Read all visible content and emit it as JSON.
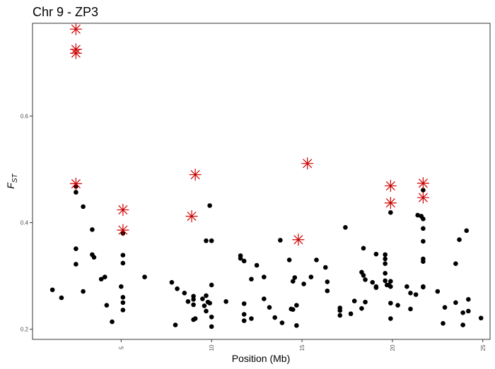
{
  "chart_data": {
    "type": "scatter",
    "title": "Chr 9 - ZP3",
    "xlabel": "Position (Mb)",
    "ylabel_main": "F",
    "ylabel_sub": "ST",
    "xlim": [
      0.1,
      25.4
    ],
    "ylim": [
      0.181,
      0.774
    ],
    "xticks": [
      5,
      10,
      15,
      20,
      25
    ],
    "yticks": [
      0.2,
      0.4,
      0.6
    ],
    "xtick_labels": [
      "5",
      "10",
      "15",
      "20",
      "25"
    ],
    "ytick_labels": [
      "0.2",
      "0.4",
      "0.6"
    ],
    "grid": false,
    "series": [
      {
        "marker": "dot",
        "color": "#000000",
        "points": [
          [
            1.2,
            0.274
          ],
          [
            1.7,
            0.259
          ],
          [
            2.5,
            0.468
          ],
          [
            2.5,
            0.457
          ],
          [
            2.5,
            0.351
          ],
          [
            2.5,
            0.322
          ],
          [
            2.9,
            0.43
          ],
          [
            2.9,
            0.271
          ],
          [
            3.4,
            0.387
          ],
          [
            3.4,
            0.34
          ],
          [
            3.5,
            0.335
          ],
          [
            3.9,
            0.294
          ],
          [
            4.1,
            0.298
          ],
          [
            4.2,
            0.245
          ],
          [
            4.5,
            0.214
          ],
          [
            5.0,
            0.28
          ],
          [
            5.1,
            0.26
          ],
          [
            5.1,
            0.25
          ],
          [
            5.1,
            0.236
          ],
          [
            5.1,
            0.339
          ],
          [
            5.1,
            0.324
          ],
          [
            5.1,
            0.38
          ],
          [
            6.3,
            0.298
          ],
          [
            7.8,
            0.288
          ],
          [
            8.0,
            0.208
          ],
          [
            8.1,
            0.276
          ],
          [
            8.5,
            0.268
          ],
          [
            8.7,
            0.252
          ],
          [
            9.0,
            0.262
          ],
          [
            9.0,
            0.256
          ],
          [
            9.0,
            0.246
          ],
          [
            9.0,
            0.218
          ],
          [
            9.1,
            0.22
          ],
          [
            9.5,
            0.257
          ],
          [
            9.6,
            0.244
          ],
          [
            9.7,
            0.263
          ],
          [
            9.7,
            0.234
          ],
          [
            9.7,
            0.366
          ],
          [
            9.8,
            0.251
          ],
          [
            9.9,
            0.432
          ],
          [
            9.9,
            0.249
          ],
          [
            10.0,
            0.366
          ],
          [
            10.0,
            0.283
          ],
          [
            10.0,
            0.223
          ],
          [
            10.0,
            0.205
          ],
          [
            10.8,
            0.252
          ],
          [
            11.6,
            0.338
          ],
          [
            11.6,
            0.333
          ],
          [
            11.8,
            0.248
          ],
          [
            11.8,
            0.328
          ],
          [
            11.8,
            0.228
          ],
          [
            11.8,
            0.216
          ],
          [
            12.2,
            0.294
          ],
          [
            12.2,
            0.22
          ],
          [
            12.5,
            0.32
          ],
          [
            12.9,
            0.298
          ],
          [
            12.9,
            0.257
          ],
          [
            13.2,
            0.241
          ],
          [
            13.5,
            0.222
          ],
          [
            13.8,
            0.367
          ],
          [
            13.9,
            0.212
          ],
          [
            14.3,
            0.33
          ],
          [
            14.4,
            0.238
          ],
          [
            14.5,
            0.29
          ],
          [
            14.5,
            0.237
          ],
          [
            14.6,
            0.297
          ],
          [
            14.7,
            0.207
          ],
          [
            14.7,
            0.245
          ],
          [
            15.1,
            0.285
          ],
          [
            15.5,
            0.298
          ],
          [
            15.8,
            0.33
          ],
          [
            16.3,
            0.316
          ],
          [
            16.4,
            0.289
          ],
          [
            16.4,
            0.272
          ],
          [
            17.1,
            0.24
          ],
          [
            17.1,
            0.235
          ],
          [
            17.1,
            0.226
          ],
          [
            17.4,
            0.391
          ],
          [
            17.7,
            0.229
          ],
          [
            17.9,
            0.253
          ],
          [
            18.3,
            0.307
          ],
          [
            18.3,
            0.239
          ],
          [
            18.4,
            0.352
          ],
          [
            18.4,
            0.301
          ],
          [
            18.5,
            0.293
          ],
          [
            18.5,
            0.251
          ],
          [
            18.9,
            0.288
          ],
          [
            19.1,
            0.341
          ],
          [
            19.1,
            0.28
          ],
          [
            19.1,
            0.278
          ],
          [
            19.6,
            0.34
          ],
          [
            19.6,
            0.332
          ],
          [
            19.6,
            0.323
          ],
          [
            19.6,
            0.305
          ],
          [
            19.6,
            0.291
          ],
          [
            19.7,
            0.283
          ],
          [
            19.8,
            0.283
          ],
          [
            19.9,
            0.419
          ],
          [
            19.9,
            0.29
          ],
          [
            19.9,
            0.28
          ],
          [
            19.9,
            0.249
          ],
          [
            19.9,
            0.22
          ],
          [
            20.3,
            0.245
          ],
          [
            20.8,
            0.28
          ],
          [
            21.0,
            0.268
          ],
          [
            21.0,
            0.238
          ],
          [
            21.3,
            0.265
          ],
          [
            21.4,
            0.414
          ],
          [
            21.6,
            0.412
          ],
          [
            21.7,
            0.461
          ],
          [
            21.7,
            0.407
          ],
          [
            21.7,
            0.389
          ],
          [
            21.7,
            0.365
          ],
          [
            21.7,
            0.332
          ],
          [
            21.7,
            0.327
          ],
          [
            21.7,
            0.28
          ],
          [
            21.7,
            0.279
          ],
          [
            22.5,
            0.271
          ],
          [
            22.8,
            0.211
          ],
          [
            22.9,
            0.241
          ],
          [
            23.5,
            0.323
          ],
          [
            23.5,
            0.25
          ],
          [
            23.7,
            0.368
          ],
          [
            23.9,
            0.231
          ],
          [
            23.9,
            0.208
          ],
          [
            24.1,
            0.385
          ],
          [
            24.2,
            0.256
          ],
          [
            24.2,
            0.234
          ],
          [
            24.9,
            0.221
          ]
        ]
      },
      {
        "marker": "asterisk",
        "color": "#cc0000",
        "points": [
          [
            2.5,
            0.763
          ],
          [
            2.5,
            0.725
          ],
          [
            2.5,
            0.718
          ],
          [
            2.5,
            0.473
          ],
          [
            5.1,
            0.424
          ],
          [
            5.1,
            0.386
          ],
          [
            9.1,
            0.49
          ],
          [
            8.9,
            0.412
          ],
          [
            14.8,
            0.368
          ],
          [
            15.3,
            0.511
          ],
          [
            19.9,
            0.469
          ],
          [
            19.9,
            0.437
          ],
          [
            21.7,
            0.474
          ],
          [
            21.7,
            0.447
          ]
        ]
      }
    ]
  }
}
